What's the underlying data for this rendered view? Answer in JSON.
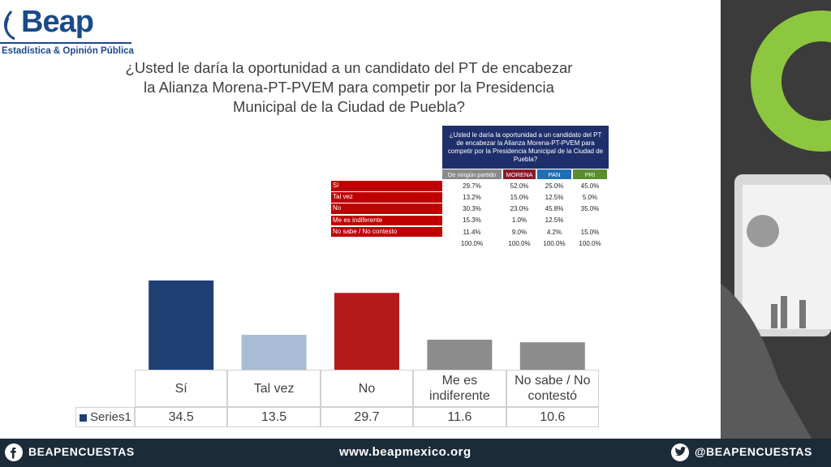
{
  "logo": {
    "brand": "Beap",
    "tagline": "Estadística & Opinión Pública"
  },
  "title": [
    "¿Usted le daría la oportunidad a un candidato del PT de encabezar",
    "la Alianza Morena-PT-PVEM para competir por la Presidencia",
    "Municipal de la Ciudad de Puebla?"
  ],
  "table": {
    "header": "¿Usted le daría la oportunidad a un candidato del PT de encabezar la Alianza Morena-PT-PVEM para competir por la Presidencia Municipal de la Ciudad de Puebla?",
    "columns": [
      "De ningún partido",
      "MORENA",
      "PAN",
      "PRI"
    ],
    "rows": [
      [
        "Sí",
        "29.7%",
        "52.0%",
        "25.0%",
        "45.0%"
      ],
      [
        "Tal vez",
        "13.2%",
        "15.0%",
        "12.5%",
        "5.0%"
      ],
      [
        "No",
        "30.3%",
        "23.0%",
        "45.8%",
        "35.0%"
      ],
      [
        "Me es indiferente",
        "15.3%",
        "1.0%",
        "12.5%",
        null
      ],
      [
        "No sabe / No contesto",
        "11.4%",
        "9.0%",
        "4.2%",
        "15.0%"
      ]
    ],
    "totals": [
      "100.0%",
      "100.0%",
      "100.0%",
      "100.0%"
    ]
  },
  "chart_data": {
    "type": "bar",
    "categories": [
      "Sí",
      "Tal vez",
      "No",
      "Me es indiferente",
      "No sabe / No contestó"
    ],
    "series": [
      {
        "name": "Series1",
        "color": "#1f3f73",
        "colors": [
          "#1f3f73",
          "#a9bcd6",
          "#b31b1b",
          "#8c8c8c",
          "#8c8c8c"
        ],
        "values": [
          34.5,
          13.5,
          29.7,
          11.6,
          10.6
        ]
      }
    ]
  },
  "footer": {
    "facebook": "BEAPENCUESTAS",
    "website": "www.beapmexico.org",
    "twitter": "@BEAPENCUESTAS"
  }
}
